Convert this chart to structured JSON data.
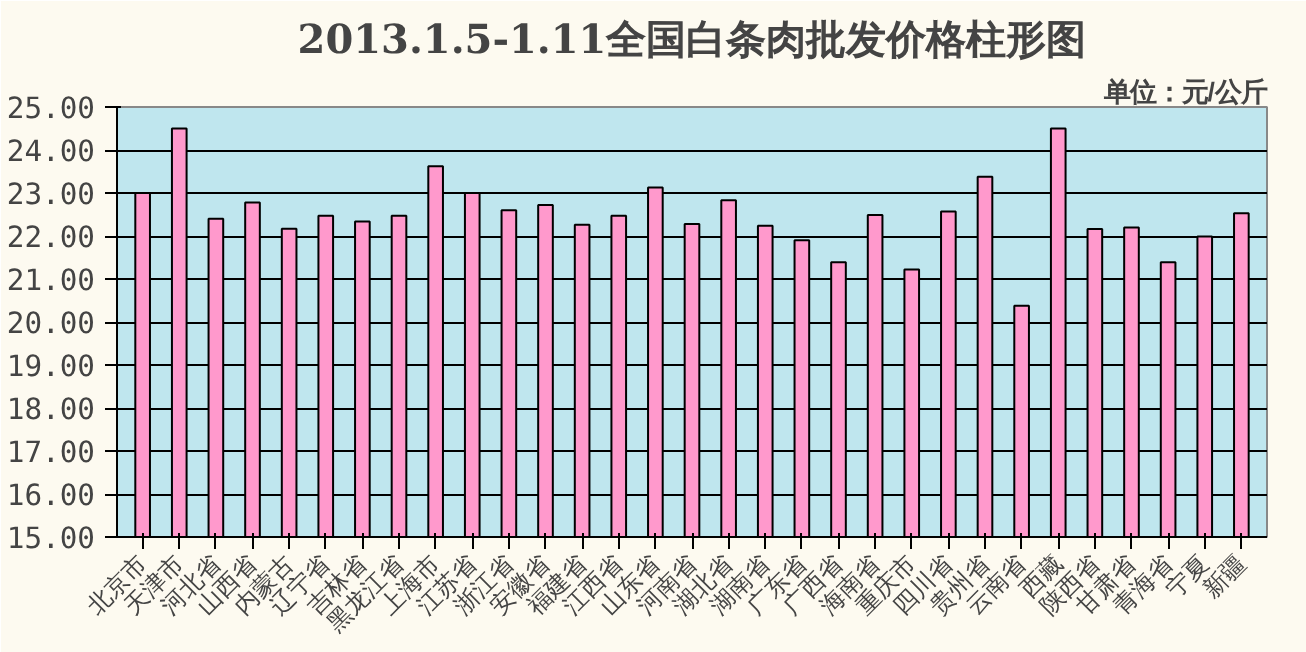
{
  "chart_data": {
    "type": "bar",
    "title": "2013.1.5-1.11全国白条肉批发价格柱形图",
    "annotations": [
      "单位：元/公斤"
    ],
    "categories": [
      "北京市",
      "天津市",
      "河北省",
      "山西省",
      "内蒙古",
      "辽宁省",
      "吉林省",
      "黑龙江省",
      "上海市",
      "江苏省",
      "浙江省",
      "安徽省",
      "福建省",
      "江西省",
      "山东省",
      "河南省",
      "湖北省",
      "湖南省",
      "广东省",
      "广西省",
      "海南省",
      "重庆市",
      "四川省",
      "贵州省",
      "云南省",
      "西藏",
      "陕西省",
      "甘肃省",
      "青海省",
      "宁夏",
      "新疆"
    ],
    "values": [
      23.0,
      24.5,
      22.4,
      22.78,
      22.17,
      22.47,
      22.34,
      22.47,
      23.62,
      23.0,
      22.6,
      22.72,
      22.26,
      22.47,
      23.13,
      22.28,
      22.83,
      22.24,
      21.9,
      21.39,
      22.49,
      21.22,
      22.57,
      23.38,
      20.38,
      24.5,
      22.16,
      22.2,
      21.39,
      21.99,
      22.53
    ],
    "color": "#ff99cc",
    "ylim": [
      15,
      25
    ],
    "yticks": [
      {
        "value": 15,
        "label": "15.00"
      },
      {
        "value": 16,
        "label": "16.00"
      },
      {
        "value": 17,
        "label": "17.00"
      },
      {
        "value": 18,
        "label": "18.00"
      },
      {
        "value": 19,
        "label": "19.00"
      },
      {
        "value": 20,
        "label": "20.00"
      },
      {
        "value": 21,
        "label": "21.00"
      },
      {
        "value": 22,
        "label": "22.00"
      },
      {
        "value": 23,
        "label": "23.00"
      },
      {
        "value": 24,
        "label": "24.00"
      },
      {
        "value": 25,
        "label": "25.00"
      }
    ],
    "grid": "y"
  }
}
